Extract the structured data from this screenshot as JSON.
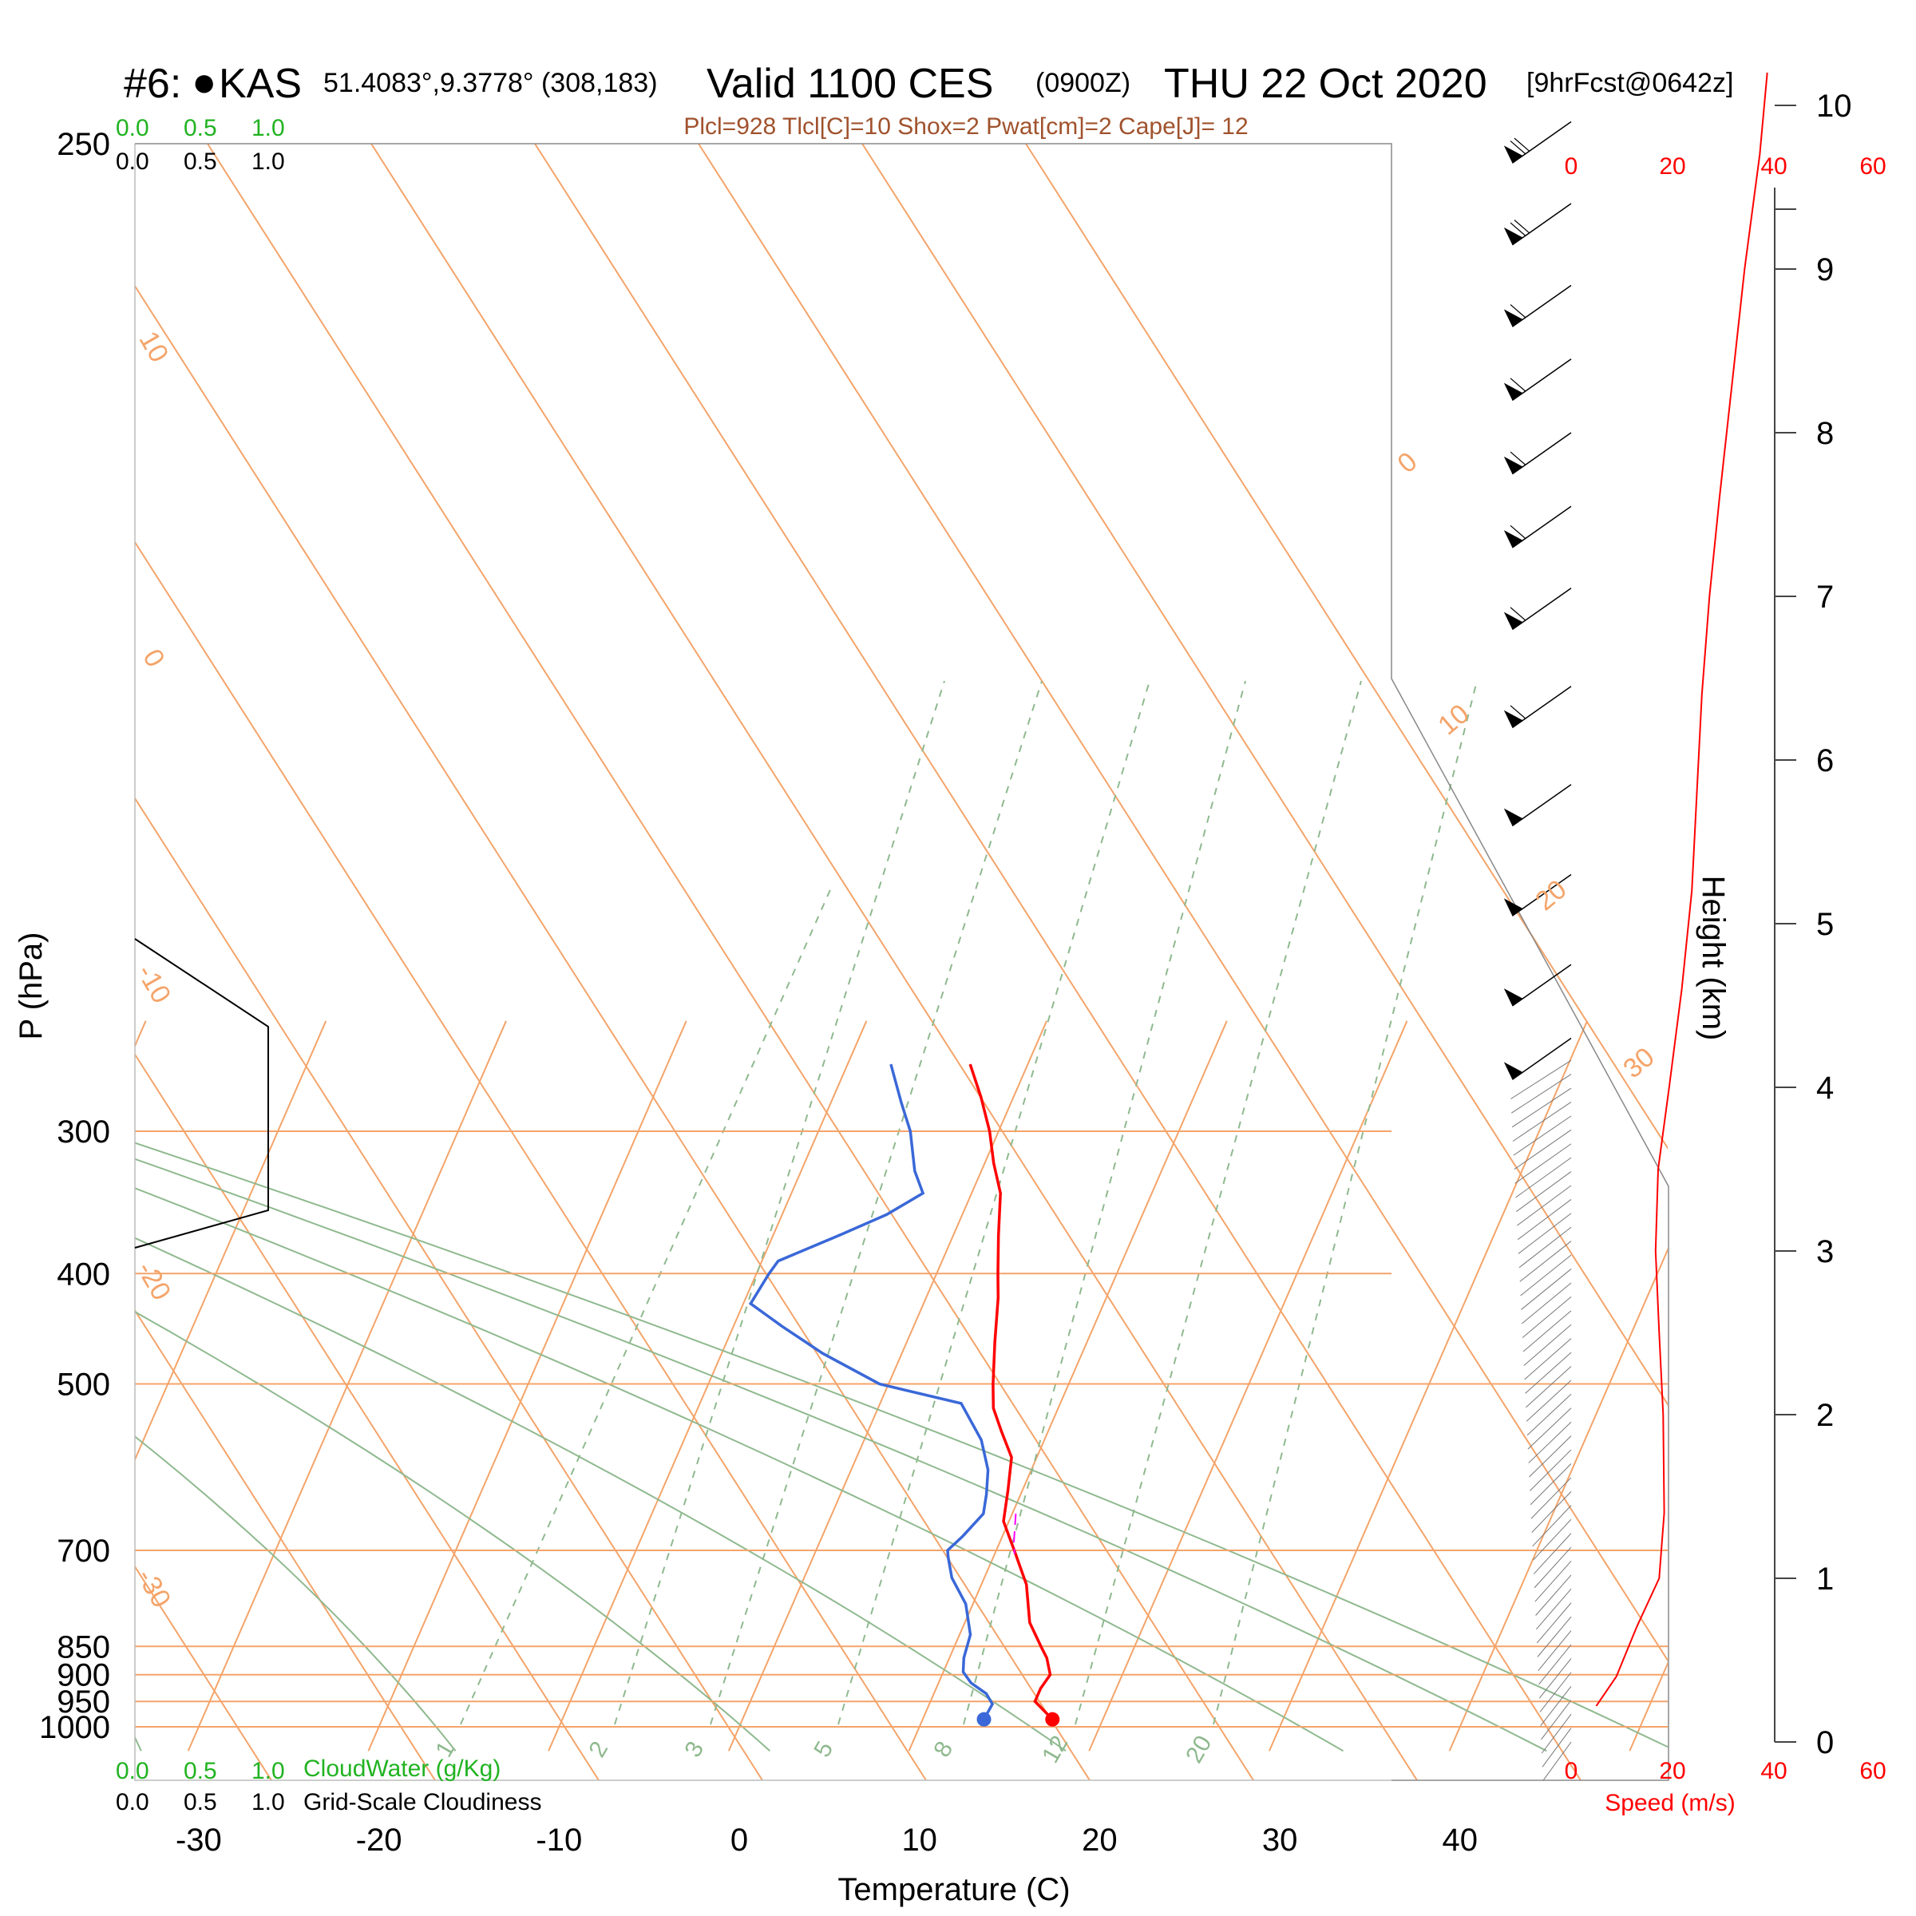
{
  "header": {
    "station_number": "#6:",
    "station_dot": "●",
    "station_id": "KAS",
    "coords": "51.4083°,9.3778° (308,183)",
    "valid_main": "Valid 1100 CES",
    "valid_zulu": "(0900Z)",
    "valid_date": "THU 22 Oct 2020",
    "forecast": "[9hrFcst@0642z]",
    "stats": "Plcl=928 Tlcl[C]=10 Shox=2 Pwat[cm]=2 Cape[J]= 12"
  },
  "legend": {
    "cloud_water_scale": [
      "0.0",
      "0.5",
      "1.0"
    ],
    "cloudiness_scale": [
      "0.0",
      "0.5",
      "1.0"
    ],
    "cloud_water_label": "CloudWater (g/Kg)",
    "cloudiness_label": "Grid-Scale Cloudiness"
  },
  "speed_axis": {
    "ticks": [
      "0",
      "20",
      "40",
      "60"
    ],
    "label": "Speed (m/s)"
  },
  "colors": {
    "isotherm": "#f4a46a",
    "dry_adiabat": "#8fb98f",
    "temperature": "#ff0000",
    "dewpoint": "#3a68d8",
    "parcel": "#ff00ff",
    "barbs": "#000000"
  },
  "chart_data": {
    "type": "line",
    "subtype": "skew-T log-P sounding",
    "xlabel": "Temperature (C)",
    "ylabel": "P (hPa)",
    "y2label": "Height (km)",
    "xticks": [
      "-30",
      "-20",
      "-10",
      "0",
      "10",
      "20",
      "30",
      "40"
    ],
    "yticks": [
      "250",
      "300",
      "400",
      "500",
      "700",
      "850",
      "900",
      "950",
      "1000"
    ],
    "height_ticks": [
      "0",
      "1",
      "2",
      "3",
      "4",
      "5",
      "6",
      "7",
      "8",
      "9",
      "10"
    ],
    "isotherm_labels": [
      "10",
      "0",
      "-10",
      "-20",
      "-30"
    ],
    "isotherm_upper_labels": [
      "0",
      "10",
      "20",
      "30"
    ],
    "mixing_ratio_labels": [
      "1",
      "2",
      "3",
      "5",
      "8",
      "12",
      "20"
    ],
    "ylim": [
      1030,
      250
    ],
    "xlim": [
      -30,
      40
    ],
    "grid": true,
    "series": [
      {
        "name": "Temperature",
        "points": [
          [
            17.2,
            985
          ],
          [
            15.8,
            950
          ],
          [
            15.8,
            925
          ],
          [
            16.0,
            900
          ],
          [
            15.4,
            870
          ],
          [
            14.8,
            850
          ],
          [
            13.6,
            810
          ],
          [
            12.5,
            750
          ],
          [
            11.0,
            700
          ],
          [
            9.7,
            660
          ],
          [
            9.2,
            620
          ],
          [
            8.6,
            580
          ],
          [
            7.4,
            550
          ],
          [
            6.4,
            525
          ],
          [
            5.8,
            500
          ],
          [
            4.9,
            460
          ],
          [
            4.0,
            420
          ],
          [
            3.4,
            400
          ],
          [
            2.5,
            370
          ],
          [
            1.6,
            340
          ],
          [
            0.5,
            320
          ],
          [
            -0.5,
            300
          ],
          [
            -1.8,
            280
          ],
          [
            -3.2,
            262
          ]
        ]
      },
      {
        "name": "Dewpoint",
        "points": [
          [
            13.4,
            985
          ],
          [
            13.5,
            955
          ],
          [
            12.9,
            935
          ],
          [
            11.8,
            915
          ],
          [
            11.1,
            895
          ],
          [
            10.8,
            870
          ],
          [
            10.6,
            830
          ],
          [
            9.6,
            780
          ],
          [
            8.2,
            740
          ],
          [
            7.5,
            710
          ],
          [
            7.3,
            700
          ],
          [
            7.8,
            680
          ],
          [
            8.4,
            650
          ],
          [
            8.1,
            625
          ],
          [
            7.6,
            595
          ],
          [
            6.5,
            560
          ],
          [
            4.5,
            520
          ],
          [
            -0.5,
            500
          ],
          [
            -4.4,
            470
          ],
          [
            -7.3,
            445
          ],
          [
            -9.6,
            425
          ],
          [
            -9.3,
            400
          ],
          [
            -9.1,
            390
          ],
          [
            -6.3,
            370
          ],
          [
            -4.2,
            355
          ],
          [
            -2.7,
            340
          ],
          [
            -3.7,
            325
          ],
          [
            -4.9,
            300
          ],
          [
            -6.1,
            283
          ],
          [
            -7.6,
            262
          ]
        ]
      },
      {
        "name": "Parcel",
        "points": [
          [
            10.2,
            650
          ],
          [
            10.8,
            690
          ],
          [
            11.1,
            705
          ]
        ]
      }
    ],
    "wind_barbs": [
      {
        "height_km": 9.9,
        "knots": 75
      },
      {
        "height_km": 9.4,
        "knots": 75
      },
      {
        "height_km": 8.9,
        "knots": 65
      },
      {
        "height_km": 8.45,
        "knots": 65
      },
      {
        "height_km": 8.0,
        "knots": 65
      },
      {
        "height_km": 7.55,
        "knots": 65
      },
      {
        "height_km": 7.05,
        "knots": 60
      },
      {
        "height_km": 6.45,
        "knots": 60
      },
      {
        "height_km": 5.85,
        "knots": 50
      },
      {
        "height_km": 5.3,
        "knots": 50
      },
      {
        "height_km": 4.75,
        "knots": 50
      },
      {
        "height_km": 4.3,
        "knots": 50
      }
    ],
    "speed_profile": {
      "xlim": [
        0,
        60
      ],
      "points": [
        [
          5,
          0.22
        ],
        [
          9,
          0.4
        ],
        [
          13,
          0.7
        ],
        [
          17.5,
          1.0
        ],
        [
          18.5,
          1.4
        ],
        [
          18.3,
          2.0
        ],
        [
          17.5,
          2.5
        ],
        [
          16.8,
          3.0
        ],
        [
          17.3,
          3.5
        ],
        [
          19.5,
          4.0
        ],
        [
          22,
          4.6
        ],
        [
          24,
          5.2
        ],
        [
          25,
          5.8
        ],
        [
          26,
          6.4
        ],
        [
          27.5,
          7.0
        ],
        [
          29.5,
          7.6
        ],
        [
          32,
          8.3
        ],
        [
          34.5,
          9.0
        ],
        [
          37.5,
          9.7
        ],
        [
          39,
          10.2
        ]
      ]
    }
  }
}
